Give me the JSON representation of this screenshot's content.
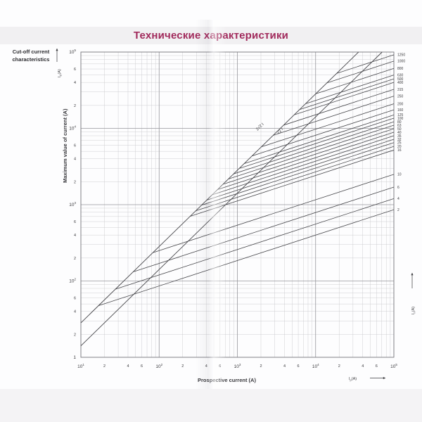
{
  "page": {
    "title": "Технические характеристики",
    "title_color": "#a12a5c",
    "section_label_line1": "Cut-off current",
    "section_label_line2": "characteristics"
  },
  "chart_data": {
    "type": "line",
    "scale": "log-log",
    "grid": "on",
    "x_axis": {
      "title": "Prospective current (A)",
      "symbol": {
        "main": "I",
        "sub": "p",
        "unit": "(A)"
      },
      "range": [
        10,
        100000
      ],
      "decades": [
        {
          "base": "10",
          "exp": "1"
        },
        {
          "base": "10",
          "exp": "2"
        },
        {
          "base": "10",
          "exp": "3"
        },
        {
          "base": "10",
          "exp": "4"
        },
        {
          "base": "10",
          "exp": "5"
        }
      ],
      "minor_tick_labels": [
        "2",
        "4",
        "6"
      ]
    },
    "y_axis": {
      "title": "Maximum value of current (A)",
      "symbol": {
        "main": "I",
        "sub": "D",
        "unit": "(A)"
      },
      "range": [
        10,
        100000
      ],
      "decades": [
        {
          "base": "10",
          "exp": "5"
        },
        {
          "base": "10",
          "exp": "4"
        },
        {
          "base": "10",
          "exp": "3"
        },
        {
          "base": "10",
          "exp": "2"
        },
        {
          "base": "1",
          "exp": ""
        }
      ],
      "minor_tick_labels": [
        "6",
        "4",
        "2"
      ]
    },
    "right_axis_symbol": {
      "main": "I",
      "sub": "n",
      "unit": "(A)"
    },
    "reference_lines": [
      {
        "label": "2√2 I",
        "factor": 2.828
      },
      {
        "label": "√2 I",
        "factor": 1.414
      }
    ],
    "series_slope": 0.333,
    "series": [
      {
        "label": "1250",
        "cutoff_at_100kA": 92000
      },
      {
        "label": "1000",
        "cutoff_at_100kA": 76000
      },
      {
        "label": "800",
        "cutoff_at_100kA": 61000
      },
      {
        "label": "630",
        "cutoff_at_100kA": 50000
      },
      {
        "label": "500",
        "cutoff_at_100kA": 44500
      },
      {
        "label": "400",
        "cutoff_at_100kA": 40000
      },
      {
        "label": "315",
        "cutoff_at_100kA": 32500
      },
      {
        "label": "250",
        "cutoff_at_100kA": 26500
      },
      {
        "label": "200",
        "cutoff_at_100kA": 21000
      },
      {
        "label": "160",
        "cutoff_at_100kA": 17500
      },
      {
        "label": "125",
        "cutoff_at_100kA": 15000
      },
      {
        "label": "100",
        "cutoff_at_100kA": 13600
      },
      {
        "label": "80",
        "cutoff_at_100kA": 12200
      },
      {
        "label": "63",
        "cutoff_at_100kA": 11000
      },
      {
        "label": "50",
        "cutoff_at_100kA": 9900
      },
      {
        "label": "40",
        "cutoff_at_100kA": 8900
      },
      {
        "label": "35",
        "cutoff_at_100kA": 8000
      },
      {
        "label": "32",
        "cutoff_at_100kA": 7200
      },
      {
        "label": "25",
        "cutoff_at_100kA": 6500
      },
      {
        "label": "20",
        "cutoff_at_100kA": 5800
      },
      {
        "label": "16",
        "cutoff_at_100kA": 5200
      },
      {
        "label": "10",
        "cutoff_at_100kA": 2500
      },
      {
        "label": "6",
        "cutoff_at_100kA": 1700
      },
      {
        "label": "4",
        "cutoff_at_100kA": 1200
      },
      {
        "label": "2",
        "cutoff_at_100kA": 860
      }
    ],
    "colors": {
      "curve": "#47474b",
      "grid_minor": "#c9c9cd",
      "grid_major": "#96969b",
      "frame": "#74747a",
      "text": "#38383c"
    }
  }
}
